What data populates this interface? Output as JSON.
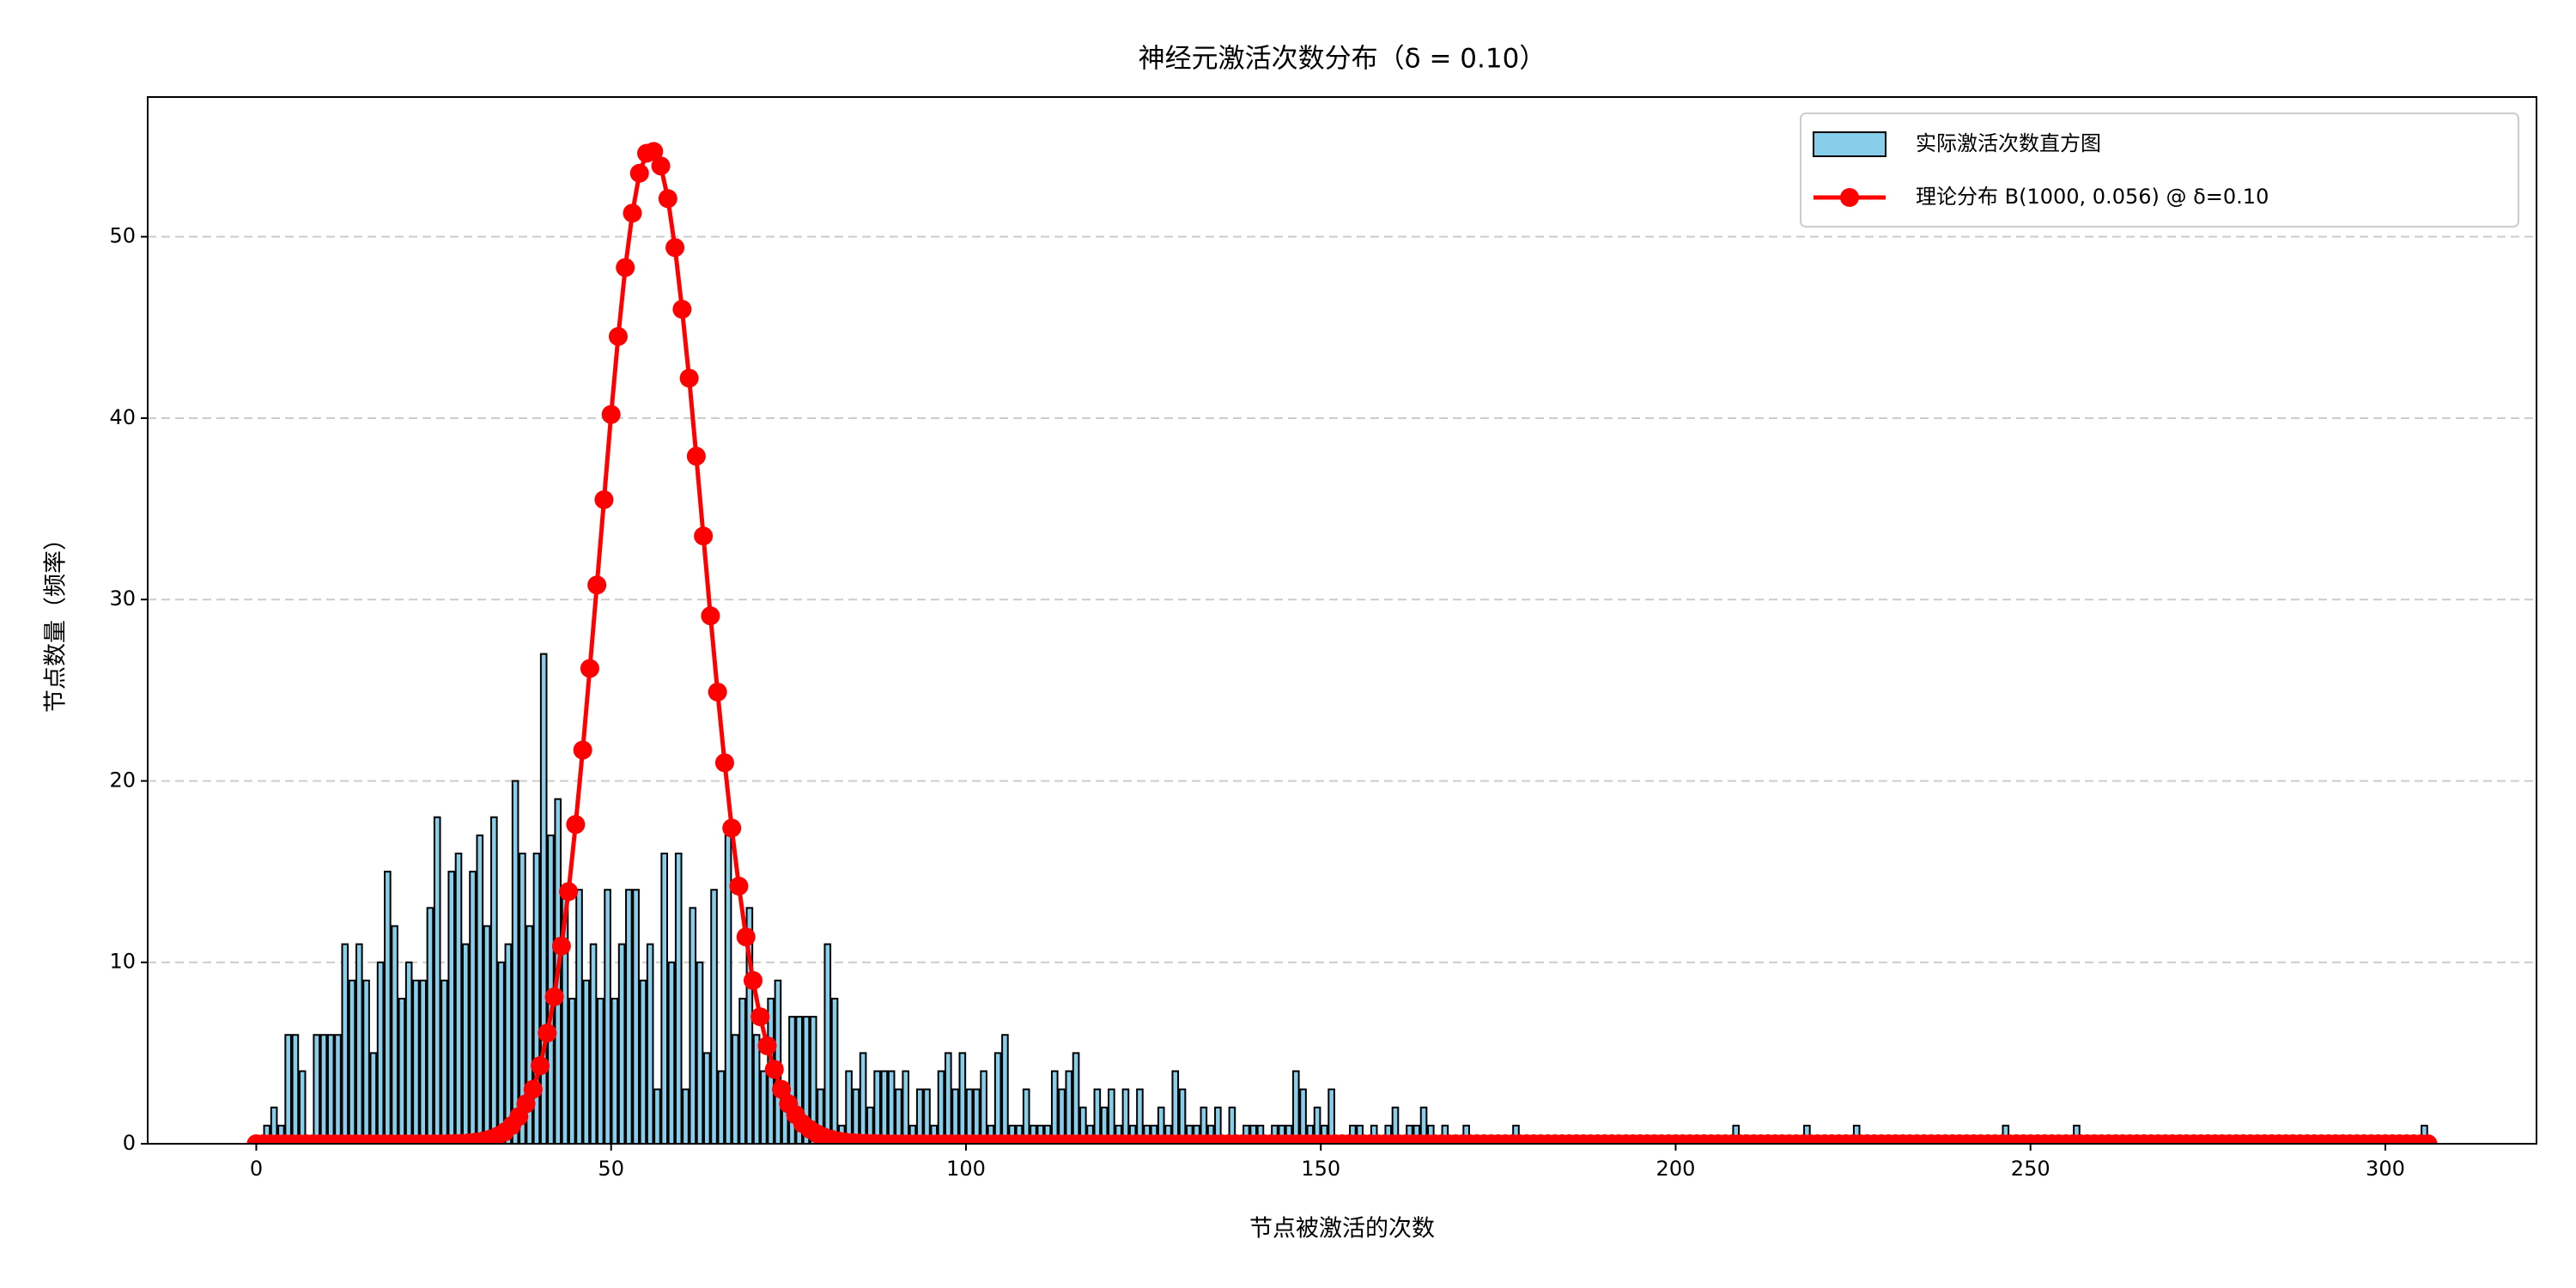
{
  "chart_data": {
    "type": "histogram",
    "title": "神经元激活次数分布（δ = 0.10）",
    "xlabel": "节点被激活的次数",
    "ylabel": "节点数量（频率）",
    "xlim": [
      -15.3,
      321.3
    ],
    "ylim": [
      0,
      57.7
    ],
    "xticks": [
      0,
      50,
      100,
      150,
      200,
      250,
      300
    ],
    "yticks": [
      0,
      10,
      20,
      30,
      40,
      50
    ],
    "grid": true,
    "legend": "upper right",
    "series": [
      {
        "name": "实际激活次数直方图",
        "type": "histogram",
        "color": "#87ceeb",
        "edgecolor": "#000000",
        "bins": [
          0,
          1,
          2,
          3,
          4,
          5,
          6,
          7,
          8,
          9,
          10,
          11,
          12,
          13,
          14,
          15,
          16,
          17,
          18,
          19,
          20,
          21,
          22,
          23,
          24,
          25,
          26,
          27,
          28,
          29,
          30,
          31,
          32,
          33,
          34,
          35,
          36,
          37,
          38,
          39,
          40,
          41,
          42,
          43,
          44,
          45,
          46,
          47,
          48,
          49,
          50,
          51,
          52,
          53,
          54,
          55,
          56,
          57,
          58,
          59,
          60,
          61,
          62,
          63,
          64,
          65,
          66,
          67,
          68,
          69,
          70,
          71,
          72,
          73,
          74,
          75,
          76,
          77,
          78,
          79,
          80,
          81,
          82,
          83,
          84,
          85,
          86,
          87,
          88,
          89,
          90,
          91,
          92,
          93,
          94,
          95,
          96,
          97,
          98,
          99,
          100,
          101,
          102,
          103,
          104,
          105,
          106,
          107,
          108,
          109,
          110,
          111,
          112,
          113,
          114,
          115,
          116,
          117,
          118,
          119,
          120,
          121,
          122,
          123,
          124,
          125,
          126,
          127,
          128,
          129,
          130,
          131,
          132,
          133,
          134,
          135,
          136,
          137,
          138,
          139,
          140,
          141,
          142,
          143,
          144,
          145,
          146,
          147,
          148,
          149,
          150,
          151,
          152,
          153,
          154,
          155,
          156,
          157,
          158,
          159,
          160,
          161,
          162,
          163,
          164,
          165,
          166,
          167,
          168,
          169,
          170,
          171,
          172,
          173,
          174,
          175,
          176,
          177,
          178,
          179,
          180,
          181,
          182,
          183,
          184,
          185,
          186,
          187,
          188,
          189,
          190,
          191,
          192,
          193,
          194,
          195,
          196,
          197,
          198,
          199,
          200,
          201,
          202,
          203,
          204,
          205,
          206,
          207,
          208,
          209,
          210,
          211,
          212,
          213,
          214,
          215,
          216,
          217,
          218,
          219,
          220,
          221,
          222,
          223,
          224,
          225,
          226,
          227,
          228,
          229,
          230,
          231,
          232,
          233,
          234,
          235,
          236,
          237,
          238,
          239,
          240,
          241,
          242,
          243,
          244,
          245,
          246,
          247,
          248,
          249,
          250,
          251,
          252,
          253,
          254,
          255,
          256,
          257,
          258,
          259,
          260,
          261,
          262,
          263,
          264,
          265,
          266,
          267,
          268,
          269,
          270,
          271,
          272,
          273,
          274,
          275,
          276,
          277,
          278,
          279,
          280,
          281,
          282,
          283,
          284,
          285,
          286,
          287,
          288,
          289,
          290,
          291,
          292,
          293,
          294,
          295,
          296,
          297,
          298,
          299,
          300,
          301,
          302,
          303,
          304,
          305,
          306
        ],
        "counts": [
          0,
          1,
          2,
          1,
          6,
          6,
          4,
          0,
          6,
          6,
          6,
          6,
          11,
          9,
          11,
          9,
          5,
          10,
          15,
          12,
          8,
          10,
          9,
          9,
          13,
          18,
          9,
          15,
          16,
          11,
          15,
          17,
          12,
          18,
          10,
          11,
          20,
          16,
          12,
          16,
          27,
          17,
          19,
          14,
          8,
          14,
          9,
          11,
          8,
          14,
          8,
          11,
          14,
          14,
          9,
          11,
          3,
          16,
          10,
          16,
          3,
          13,
          10,
          5,
          14,
          4,
          17,
          6,
          8,
          13,
          6,
          4,
          8,
          9,
          3,
          7,
          7,
          7,
          7,
          3,
          11,
          8,
          1,
          4,
          3,
          5,
          2,
          4,
          4,
          4,
          3,
          4,
          1,
          3,
          3,
          1,
          4,
          5,
          3,
          5,
          3,
          3,
          4,
          1,
          5,
          6,
          1,
          1,
          3,
          1,
          1,
          1,
          4,
          3,
          4,
          5,
          2,
          1,
          3,
          2,
          3,
          1,
          3,
          1,
          3,
          1,
          1,
          2,
          1,
          4,
          3,
          1,
          1,
          2,
          1,
          2,
          0,
          2,
          0,
          1,
          1,
          1,
          0,
          1,
          1,
          1,
          4,
          3,
          1,
          2,
          1,
          3,
          0,
          0,
          1,
          1,
          0,
          1,
          0,
          1,
          2,
          0,
          1,
          1,
          2,
          1,
          0,
          1,
          0,
          0,
          1,
          0,
          0,
          0,
          0,
          0,
          0,
          1,
          0,
          0,
          0,
          0,
          0,
          0,
          0,
          0,
          0,
          0,
          0,
          0,
          0,
          0,
          0,
          0,
          0,
          0,
          0,
          0,
          0,
          0,
          0,
          0,
          0,
          0,
          0,
          0,
          0,
          0,
          1,
          0,
          0,
          0,
          0,
          0,
          0,
          0,
          0,
          0,
          1,
          0,
          0,
          0,
          0,
          0,
          0,
          1,
          0,
          0,
          0,
          0,
          0,
          0,
          0,
          0,
          0,
          0,
          0,
          0,
          0,
          0,
          0,
          0,
          0,
          0,
          0,
          0,
          1,
          0,
          0,
          0,
          0,
          0,
          0,
          0,
          0,
          0,
          1,
          0,
          0,
          0,
          0,
          0,
          0,
          0,
          0,
          0,
          0,
          0,
          0,
          0,
          0,
          0,
          0,
          0,
          0,
          0,
          0,
          0,
          0,
          0,
          0,
          0,
          0,
          0,
          0,
          0,
          0,
          0,
          0,
          0,
          0,
          0,
          0,
          0,
          0,
          0,
          0,
          0,
          0,
          0,
          0,
          0,
          0,
          0,
          0,
          1
        ]
      },
      {
        "name": "理论分布 B(1000, 0.056) @ δ=0.10",
        "type": "line",
        "color": "#ff0000",
        "x": [
          0,
          1,
          2,
          3,
          4,
          5,
          6,
          7,
          8,
          9,
          10,
          11,
          12,
          13,
          14,
          15,
          16,
          17,
          18,
          19,
          20,
          21,
          22,
          23,
          24,
          25,
          26,
          27,
          28,
          29,
          30,
          31,
          32,
          33,
          34,
          35,
          36,
          37,
          38,
          39,
          40,
          41,
          42,
          43,
          44,
          45,
          46,
          47,
          48,
          49,
          50,
          51,
          52,
          53,
          54,
          55,
          56,
          57,
          58,
          59,
          60,
          61,
          62,
          63,
          64,
          65,
          66,
          67,
          68,
          69,
          70,
          71,
          72,
          73,
          74,
          75,
          76,
          77,
          78,
          79,
          80,
          81,
          82,
          83,
          84,
          85,
          86,
          87,
          88,
          89,
          90,
          91,
          92,
          93,
          94,
          95,
          96,
          97,
          98,
          99,
          100,
          101,
          102,
          103,
          104,
          105,
          106,
          107,
          108,
          109,
          110,
          111,
          112,
          113,
          114,
          115,
          116,
          117,
          118,
          119,
          120,
          121,
          122,
          123,
          124,
          125,
          126,
          127,
          128,
          129,
          130,
          131,
          132,
          133,
          134,
          135,
          136,
          137,
          138,
          139,
          140,
          141,
          142,
          143,
          144,
          145,
          146,
          147,
          148,
          149,
          150,
          151,
          152,
          153,
          154,
          155,
          156,
          157,
          158,
          159,
          160,
          161,
          162,
          163,
          164,
          165,
          166,
          167,
          168,
          169,
          170,
          171,
          172,
          173,
          174,
          175,
          176,
          177,
          178,
          179,
          180,
          181,
          182,
          183,
          184,
          185,
          186,
          187,
          188,
          189,
          190,
          191,
          192,
          193,
          194,
          195,
          196,
          197,
          198,
          199,
          200,
          201,
          202,
          203,
          204,
          205,
          206,
          207,
          208,
          209,
          210,
          211,
          212,
          213,
          214,
          215,
          216,
          217,
          218,
          219,
          220,
          221,
          222,
          223,
          224,
          225,
          226,
          227,
          228,
          229,
          230,
          231,
          232,
          233,
          234,
          235,
          236,
          237,
          238,
          239,
          240,
          241,
          242,
          243,
          244,
          245,
          246,
          247,
          248,
          249,
          250,
          251,
          252,
          253,
          254,
          255,
          256,
          257,
          258,
          259,
          260,
          261,
          262,
          263,
          264,
          265,
          266,
          267,
          268,
          269,
          270,
          271,
          272,
          273,
          274,
          275,
          276,
          277,
          278,
          279,
          280,
          281,
          282,
          283,
          284,
          285,
          286,
          287,
          288,
          289,
          290,
          291,
          292,
          293,
          294,
          295,
          296,
          297,
          298,
          299,
          300,
          301,
          302,
          303,
          304,
          305,
          306
        ],
        "values": [
          0,
          0,
          0,
          0,
          0,
          0,
          0,
          0,
          0,
          0,
          0,
          0,
          0,
          0,
          0,
          0,
          0,
          0,
          0,
          0,
          0,
          0,
          0,
          0,
          0,
          0,
          0,
          0.01,
          0.02,
          0.03,
          0.06,
          0.1,
          0.16,
          0.26,
          0.42,
          0.65,
          1.0,
          1.5,
          2.2,
          3.0,
          4.3,
          6.1,
          8.1,
          10.9,
          13.9,
          17.6,
          21.7,
          26.2,
          30.8,
          35.5,
          40.2,
          44.5,
          48.3,
          51.3,
          53.5,
          54.6,
          54.7,
          53.9,
          52.1,
          49.4,
          46.0,
          42.2,
          37.9,
          33.5,
          29.1,
          24.9,
          21.0,
          17.4,
          14.2,
          11.4,
          9.0,
          7.0,
          5.4,
          4.1,
          3.0,
          2.2,
          1.6,
          1.1,
          0.8,
          0.55,
          0.37,
          0.25,
          0.16,
          0.1,
          0.07,
          0.04,
          0.03,
          0.02,
          0.01,
          0,
          0,
          0,
          0,
          0,
          0,
          0,
          0,
          0,
          0,
          0,
          0,
          0,
          0,
          0,
          0,
          0,
          0,
          0,
          0,
          0,
          0,
          0,
          0,
          0,
          0,
          0,
          0,
          0,
          0,
          0,
          0,
          0,
          0,
          0,
          0,
          0,
          0,
          0,
          0,
          0,
          0,
          0,
          0,
          0,
          0,
          0,
          0,
          0,
          0,
          0,
          0,
          0,
          0,
          0,
          0,
          0,
          0,
          0,
          0,
          0,
          0,
          0,
          0,
          0,
          0,
          0,
          0,
          0,
          0,
          0,
          0,
          0,
          0,
          0,
          0,
          0,
          0,
          0,
          0,
          0,
          0,
          0,
          0,
          0,
          0,
          0,
          0,
          0,
          0,
          0,
          0,
          0,
          0,
          0,
          0,
          0,
          0,
          0,
          0,
          0,
          0,
          0,
          0,
          0,
          0,
          0,
          0,
          0,
          0,
          0,
          0,
          0,
          0,
          0,
          0,
          0,
          0,
          0,
          0,
          0,
          0,
          0,
          0,
          0,
          0,
          0,
          0,
          0,
          0,
          0,
          0,
          0,
          0,
          0,
          0,
          0,
          0,
          0,
          0,
          0,
          0,
          0,
          0,
          0,
          0,
          0,
          0,
          0,
          0,
          0,
          0,
          0,
          0,
          0,
          0,
          0,
          0,
          0,
          0,
          0,
          0,
          0,
          0,
          0,
          0,
          0,
          0,
          0,
          0,
          0,
          0,
          0,
          0,
          0,
          0,
          0,
          0,
          0,
          0,
          0,
          0,
          0,
          0,
          0,
          0,
          0,
          0,
          0,
          0,
          0,
          0,
          0,
          0,
          0,
          0,
          0,
          0,
          0,
          0,
          0,
          0,
          0,
          0,
          0,
          0,
          0,
          0,
          0,
          0,
          0,
          0,
          0,
          0,
          0,
          0,
          0,
          0
        ]
      }
    ]
  }
}
